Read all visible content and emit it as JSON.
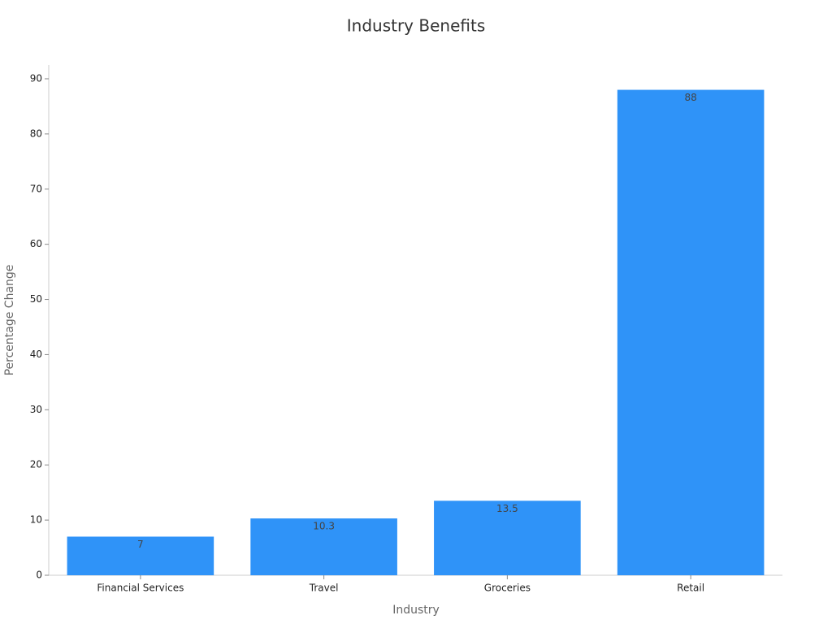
{
  "chart_data": {
    "type": "bar",
    "title": "Industry Benefits",
    "x_label": "Industry",
    "y_label": "Percentage Change",
    "categories": [
      "Financial Services",
      "Travel",
      "Groceries",
      "Retail"
    ],
    "values": [
      7,
      10.3,
      13.5,
      88
    ],
    "color": "#2f93f8",
    "ylim": [
      0,
      92.5
    ],
    "yticks": [
      0,
      10,
      20,
      30,
      40,
      50,
      60,
      70,
      80,
      90
    ],
    "grid": false
  }
}
